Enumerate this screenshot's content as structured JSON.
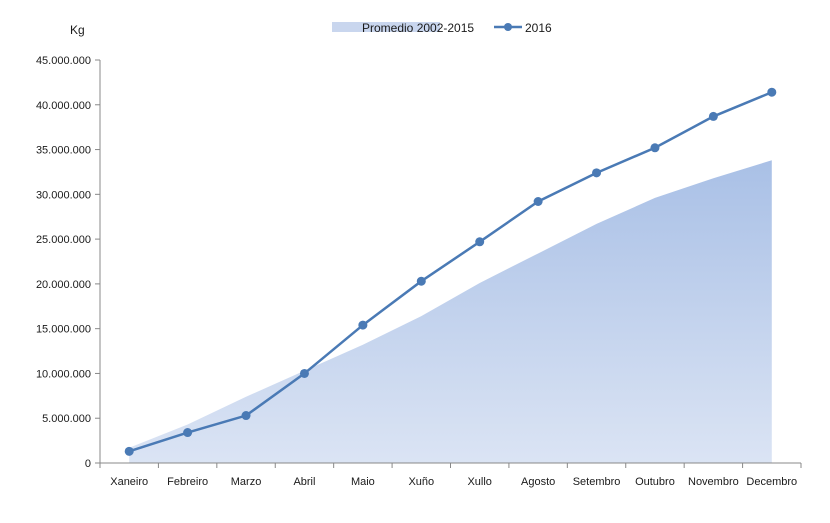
{
  "chart_data": {
    "type": "line",
    "ylabel": "Kg",
    "categories": [
      "Xaneiro",
      "Febreiro",
      "Marzo",
      "Abril",
      "Maio",
      "Xuño",
      "Xullo",
      "Agosto",
      "Setembro",
      "Outubro",
      "Novembro",
      "Decembro"
    ],
    "ylim": [
      0,
      45000000
    ],
    "yticks": [
      0,
      5000000,
      10000000,
      15000000,
      20000000,
      25000000,
      30000000,
      35000000,
      40000000,
      45000000
    ],
    "ytick_labels": [
      "0",
      "5.000.000",
      "10.000.000",
      "15.000.000",
      "20.000.000",
      "25.000.000",
      "30.000.000",
      "35.000.000",
      "40.000.000",
      "45.000.000"
    ],
    "grid": false,
    "legend_position": "top",
    "series": [
      {
        "name": "Promedio 2002-2015",
        "type": "area",
        "color": "#b4c7e7",
        "values": [
          1700000,
          4300000,
          7400000,
          10300000,
          13200000,
          16400000,
          20100000,
          23400000,
          26700000,
          29600000,
          31800000,
          33800000
        ]
      },
      {
        "name": "2016",
        "type": "line",
        "color": "#4a7ab5",
        "values": [
          1300000,
          3400000,
          5300000,
          10000000,
          15400000,
          20300000,
          24700000,
          29200000,
          32400000,
          35200000,
          38700000,
          41400000
        ]
      }
    ]
  }
}
